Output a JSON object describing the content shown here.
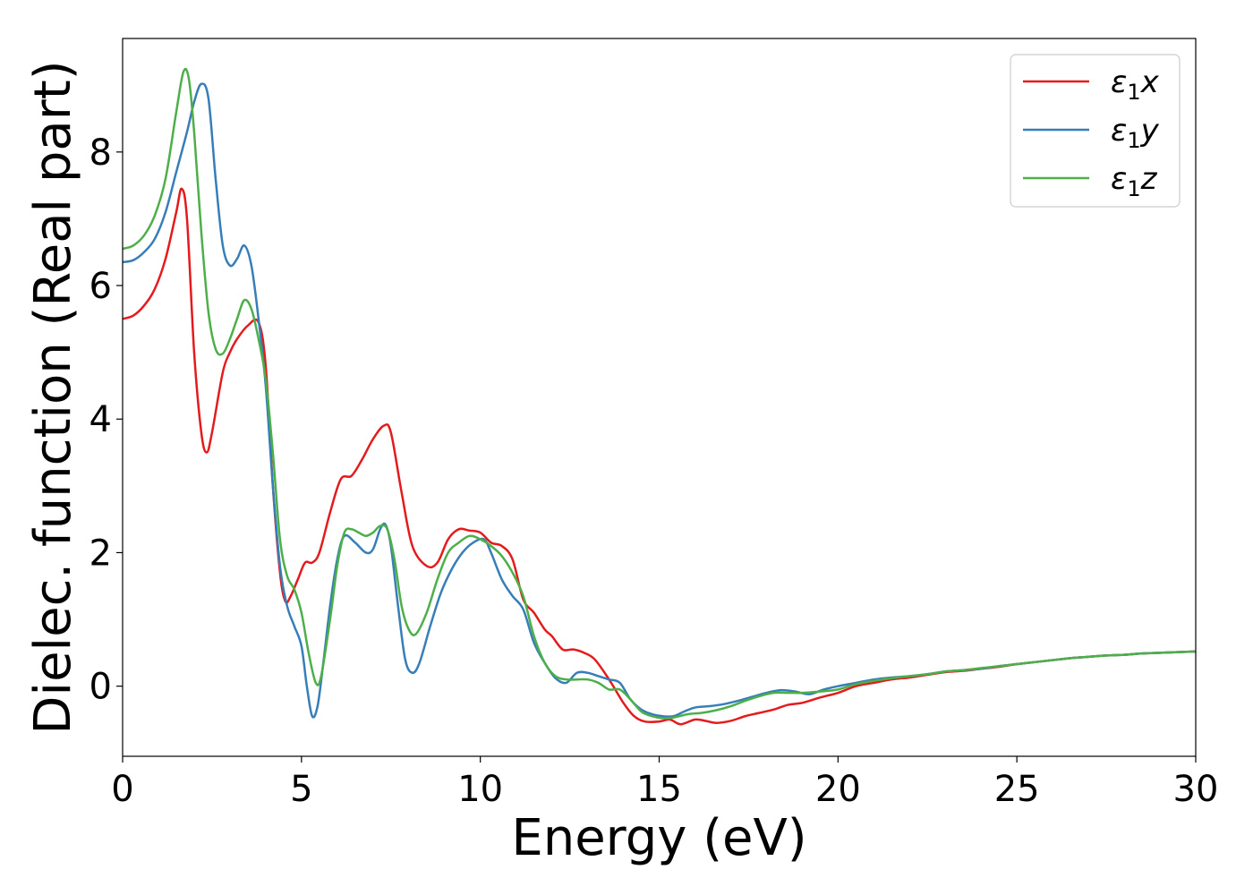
{
  "chart_data": {
    "type": "line",
    "xlabel": "Energy (eV)",
    "ylabel": "Dielec. function (Real part)",
    "xlim": [
      0,
      30
    ],
    "ylim": [
      -1.05,
      9.7
    ],
    "x_ticks": [
      0,
      5,
      10,
      15,
      20,
      25,
      30
    ],
    "y_ticks": [
      0,
      2,
      4,
      6,
      8
    ],
    "grid": false,
    "legend_position": "top-right",
    "series": [
      {
        "name": "ε₁x",
        "legend": {
          "base": "ε",
          "sub": "1",
          "var": "x"
        },
        "color": "#e41a1c",
        "points": [
          [
            0,
            5.5
          ],
          [
            0.3,
            5.55
          ],
          [
            0.6,
            5.7
          ],
          [
            0.9,
            5.95
          ],
          [
            1.2,
            6.4
          ],
          [
            1.5,
            7.1
          ],
          [
            1.65,
            7.45
          ],
          [
            1.8,
            7.0
          ],
          [
            2.0,
            5.0
          ],
          [
            2.2,
            3.8
          ],
          [
            2.35,
            3.5
          ],
          [
            2.5,
            3.8
          ],
          [
            2.8,
            4.7
          ],
          [
            3.0,
            5.0
          ],
          [
            3.2,
            5.2
          ],
          [
            3.5,
            5.4
          ],
          [
            3.8,
            5.45
          ],
          [
            4.0,
            4.8
          ],
          [
            4.2,
            3.0
          ],
          [
            4.4,
            1.7
          ],
          [
            4.55,
            1.27
          ],
          [
            4.7,
            1.35
          ],
          [
            4.9,
            1.6
          ],
          [
            5.1,
            1.85
          ],
          [
            5.3,
            1.85
          ],
          [
            5.5,
            2.0
          ],
          [
            5.8,
            2.6
          ],
          [
            6.1,
            3.1
          ],
          [
            6.4,
            3.15
          ],
          [
            6.7,
            3.4
          ],
          [
            7.0,
            3.7
          ],
          [
            7.3,
            3.9
          ],
          [
            7.5,
            3.8
          ],
          [
            7.8,
            2.9
          ],
          [
            8.1,
            2.1
          ],
          [
            8.5,
            1.8
          ],
          [
            8.8,
            1.85
          ],
          [
            9.1,
            2.2
          ],
          [
            9.4,
            2.35
          ],
          [
            9.7,
            2.33
          ],
          [
            10.0,
            2.3
          ],
          [
            10.3,
            2.15
          ],
          [
            10.6,
            2.1
          ],
          [
            10.9,
            1.9
          ],
          [
            11.2,
            1.3
          ],
          [
            11.5,
            1.1
          ],
          [
            11.8,
            0.85
          ],
          [
            12.0,
            0.75
          ],
          [
            12.3,
            0.55
          ],
          [
            12.6,
            0.55
          ],
          [
            12.9,
            0.5
          ],
          [
            13.2,
            0.4
          ],
          [
            13.6,
            0.1
          ],
          [
            14.0,
            -0.25
          ],
          [
            14.3,
            -0.45
          ],
          [
            14.6,
            -0.53
          ],
          [
            15.0,
            -0.53
          ],
          [
            15.3,
            -0.5
          ],
          [
            15.6,
            -0.57
          ],
          [
            16.0,
            -0.5
          ],
          [
            16.3,
            -0.52
          ],
          [
            16.6,
            -0.55
          ],
          [
            17.0,
            -0.52
          ],
          [
            17.4,
            -0.45
          ],
          [
            17.8,
            -0.4
          ],
          [
            18.2,
            -0.35
          ],
          [
            18.6,
            -0.28
          ],
          [
            19.0,
            -0.25
          ],
          [
            19.5,
            -0.17
          ],
          [
            20.0,
            -0.1
          ],
          [
            20.5,
            0.0
          ],
          [
            21.0,
            0.05
          ],
          [
            21.5,
            0.1
          ],
          [
            22.0,
            0.13
          ],
          [
            22.5,
            0.17
          ],
          [
            23.0,
            0.21
          ],
          [
            23.5,
            0.23
          ],
          [
            24.0,
            0.26
          ],
          [
            24.5,
            0.29
          ],
          [
            25.0,
            0.33
          ],
          [
            25.5,
            0.36
          ],
          [
            26.0,
            0.39
          ],
          [
            26.5,
            0.42
          ],
          [
            27.0,
            0.44
          ],
          [
            27.5,
            0.46
          ],
          [
            28.0,
            0.47
          ],
          [
            28.5,
            0.49
          ],
          [
            29.0,
            0.5
          ],
          [
            29.5,
            0.51
          ],
          [
            30.0,
            0.52
          ]
        ]
      },
      {
        "name": "ε₁y",
        "legend": {
          "base": "ε",
          "sub": "1",
          "var": "y"
        },
        "color": "#377eb8",
        "points": [
          [
            0,
            6.35
          ],
          [
            0.3,
            6.38
          ],
          [
            0.6,
            6.5
          ],
          [
            0.9,
            6.7
          ],
          [
            1.2,
            7.1
          ],
          [
            1.5,
            7.7
          ],
          [
            1.8,
            8.3
          ],
          [
            2.0,
            8.75
          ],
          [
            2.2,
            9.02
          ],
          [
            2.4,
            8.8
          ],
          [
            2.6,
            7.6
          ],
          [
            2.8,
            6.6
          ],
          [
            3.0,
            6.3
          ],
          [
            3.2,
            6.4
          ],
          [
            3.4,
            6.6
          ],
          [
            3.6,
            6.3
          ],
          [
            3.8,
            5.5
          ],
          [
            4.0,
            4.5
          ],
          [
            4.2,
            3.0
          ],
          [
            4.4,
            1.8
          ],
          [
            4.6,
            1.2
          ],
          [
            4.8,
            0.9
          ],
          [
            5.0,
            0.6
          ],
          [
            5.15,
            0.0
          ],
          [
            5.3,
            -0.45
          ],
          [
            5.45,
            -0.3
          ],
          [
            5.6,
            0.3
          ],
          [
            5.8,
            1.2
          ],
          [
            6.0,
            1.9
          ],
          [
            6.2,
            2.25
          ],
          [
            6.5,
            2.15
          ],
          [
            6.8,
            2.0
          ],
          [
            7.0,
            2.05
          ],
          [
            7.2,
            2.35
          ],
          [
            7.35,
            2.42
          ],
          [
            7.5,
            2.1
          ],
          [
            7.7,
            1.2
          ],
          [
            7.9,
            0.4
          ],
          [
            8.1,
            0.2
          ],
          [
            8.3,
            0.35
          ],
          [
            8.6,
            0.9
          ],
          [
            8.9,
            1.4
          ],
          [
            9.2,
            1.75
          ],
          [
            9.5,
            2.0
          ],
          [
            9.8,
            2.15
          ],
          [
            10.1,
            2.2
          ],
          [
            10.3,
            2.0
          ],
          [
            10.6,
            1.6
          ],
          [
            10.9,
            1.35
          ],
          [
            11.2,
            1.15
          ],
          [
            11.5,
            0.65
          ],
          [
            11.8,
            0.35
          ],
          [
            12.1,
            0.12
          ],
          [
            12.4,
            0.05
          ],
          [
            12.7,
            0.2
          ],
          [
            13.0,
            0.2
          ],
          [
            13.3,
            0.15
          ],
          [
            13.6,
            0.1
          ],
          [
            13.9,
            0.05
          ],
          [
            14.2,
            -0.2
          ],
          [
            14.5,
            -0.35
          ],
          [
            14.8,
            -0.42
          ],
          [
            15.1,
            -0.45
          ],
          [
            15.4,
            -0.45
          ],
          [
            15.7,
            -0.38
          ],
          [
            16.0,
            -0.32
          ],
          [
            16.4,
            -0.3
          ],
          [
            16.8,
            -0.27
          ],
          [
            17.2,
            -0.22
          ],
          [
            17.6,
            -0.16
          ],
          [
            18.0,
            -0.1
          ],
          [
            18.4,
            -0.06
          ],
          [
            18.8,
            -0.08
          ],
          [
            19.2,
            -0.12
          ],
          [
            19.6,
            -0.05
          ],
          [
            20.0,
            0.0
          ],
          [
            20.5,
            0.05
          ],
          [
            21.0,
            0.1
          ],
          [
            21.5,
            0.13
          ],
          [
            22.0,
            0.15
          ],
          [
            22.5,
            0.18
          ],
          [
            23.0,
            0.22
          ],
          [
            23.5,
            0.24
          ],
          [
            24.0,
            0.26
          ],
          [
            24.5,
            0.3
          ],
          [
            25.0,
            0.33
          ],
          [
            25.5,
            0.36
          ],
          [
            26.0,
            0.39
          ],
          [
            26.5,
            0.42
          ],
          [
            27.0,
            0.44
          ],
          [
            27.5,
            0.46
          ],
          [
            28.0,
            0.47
          ],
          [
            28.5,
            0.49
          ],
          [
            29.0,
            0.5
          ],
          [
            29.5,
            0.51
          ],
          [
            30.0,
            0.52
          ]
        ]
      },
      {
        "name": "ε₁z",
        "legend": {
          "base": "ε",
          "sub": "1",
          "var": "z"
        },
        "color": "#4daf4a",
        "points": [
          [
            0,
            6.55
          ],
          [
            0.3,
            6.6
          ],
          [
            0.6,
            6.75
          ],
          [
            0.9,
            7.05
          ],
          [
            1.2,
            7.6
          ],
          [
            1.5,
            8.6
          ],
          [
            1.7,
            9.2
          ],
          [
            1.85,
            9.1
          ],
          [
            2.0,
            8.3
          ],
          [
            2.2,
            6.8
          ],
          [
            2.4,
            5.6
          ],
          [
            2.6,
            5.05
          ],
          [
            2.8,
            4.98
          ],
          [
            3.0,
            5.2
          ],
          [
            3.2,
            5.5
          ],
          [
            3.4,
            5.78
          ],
          [
            3.6,
            5.65
          ],
          [
            3.8,
            5.2
          ],
          [
            4.0,
            4.6
          ],
          [
            4.2,
            3.5
          ],
          [
            4.4,
            2.2
          ],
          [
            4.6,
            1.65
          ],
          [
            4.8,
            1.45
          ],
          [
            5.0,
            1.1
          ],
          [
            5.2,
            0.5
          ],
          [
            5.4,
            0.05
          ],
          [
            5.55,
            0.15
          ],
          [
            5.8,
            1.0
          ],
          [
            6.0,
            1.8
          ],
          [
            6.2,
            2.3
          ],
          [
            6.4,
            2.35
          ],
          [
            6.6,
            2.3
          ],
          [
            6.8,
            2.25
          ],
          [
            7.0,
            2.3
          ],
          [
            7.2,
            2.4
          ],
          [
            7.4,
            2.35
          ],
          [
            7.6,
            1.9
          ],
          [
            7.8,
            1.2
          ],
          [
            8.0,
            0.85
          ],
          [
            8.2,
            0.78
          ],
          [
            8.5,
            1.1
          ],
          [
            8.8,
            1.6
          ],
          [
            9.1,
            2.0
          ],
          [
            9.4,
            2.15
          ],
          [
            9.7,
            2.25
          ],
          [
            10.0,
            2.2
          ],
          [
            10.3,
            2.1
          ],
          [
            10.6,
            1.95
          ],
          [
            10.9,
            1.7
          ],
          [
            11.2,
            1.35
          ],
          [
            11.5,
            0.75
          ],
          [
            11.8,
            0.35
          ],
          [
            12.1,
            0.15
          ],
          [
            12.4,
            0.1
          ],
          [
            12.7,
            0.1
          ],
          [
            13.0,
            0.1
          ],
          [
            13.3,
            0.05
          ],
          [
            13.6,
            -0.05
          ],
          [
            13.9,
            -0.05
          ],
          [
            14.2,
            -0.2
          ],
          [
            14.5,
            -0.38
          ],
          [
            14.8,
            -0.45
          ],
          [
            15.1,
            -0.48
          ],
          [
            15.4,
            -0.47
          ],
          [
            15.8,
            -0.42
          ],
          [
            16.2,
            -0.4
          ],
          [
            16.6,
            -0.36
          ],
          [
            17.0,
            -0.3
          ],
          [
            17.4,
            -0.22
          ],
          [
            17.8,
            -0.15
          ],
          [
            18.2,
            -0.1
          ],
          [
            18.6,
            -0.1
          ],
          [
            19.0,
            -0.1
          ],
          [
            19.5,
            -0.08
          ],
          [
            20.0,
            -0.05
          ],
          [
            20.5,
            0.03
          ],
          [
            21.0,
            0.08
          ],
          [
            21.5,
            0.12
          ],
          [
            22.0,
            0.15
          ],
          [
            22.5,
            0.18
          ],
          [
            23.0,
            0.22
          ],
          [
            23.5,
            0.24
          ],
          [
            24.0,
            0.27
          ],
          [
            24.5,
            0.3
          ],
          [
            25.0,
            0.33
          ],
          [
            25.5,
            0.36
          ],
          [
            26.0,
            0.39
          ],
          [
            26.5,
            0.42
          ],
          [
            27.0,
            0.44
          ],
          [
            27.5,
            0.46
          ],
          [
            28.0,
            0.47
          ],
          [
            28.5,
            0.49
          ],
          [
            29.0,
            0.5
          ],
          [
            29.5,
            0.51
          ],
          [
            30.0,
            0.52
          ]
        ]
      }
    ]
  }
}
